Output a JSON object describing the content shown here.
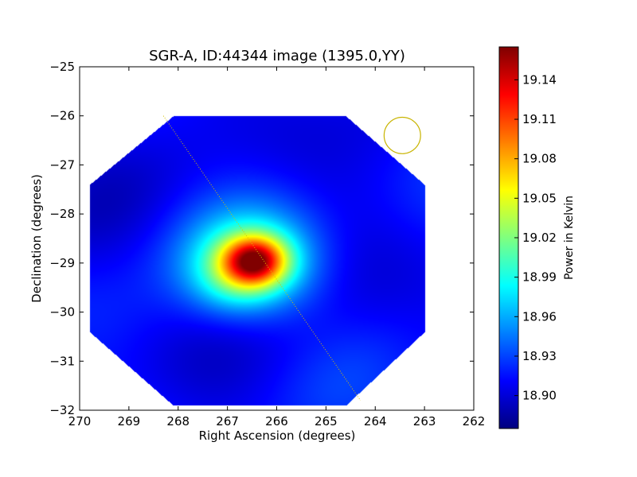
{
  "chart_data": {
    "type": "heatmap",
    "title": "SGR-A, ID:44344 image (1395.0,YY)",
    "xlabel": "Right Ascension (degrees)",
    "ylabel": "Declination (degrees)",
    "xlim": [
      270,
      262
    ],
    "ylim": [
      -32,
      -25
    ],
    "xticks": [
      270,
      269,
      268,
      267,
      266,
      265,
      264,
      263,
      262
    ],
    "yticks": [
      -25,
      -26,
      -27,
      -28,
      -29,
      -30,
      -31,
      -32
    ],
    "x_tick_labels": [
      "270",
      "269",
      "268",
      "267",
      "266",
      "265",
      "264",
      "263",
      "262"
    ],
    "y_tick_labels": [
      "−25",
      "−26",
      "−27",
      "−28",
      "−29",
      "−30",
      "−31",
      "−32"
    ],
    "grid": false,
    "colormap": "jet",
    "colorbar": {
      "label": "Power in Kelvin",
      "min": 18.875,
      "max": 19.165,
      "ticks": [
        18.9,
        18.93,
        18.96,
        18.99,
        19.02,
        19.05,
        19.08,
        19.11,
        19.14
      ],
      "tick_labels": [
        "18.90",
        "18.93",
        "18.96",
        "18.99",
        "19.02",
        "19.05",
        "19.08",
        "19.11",
        "19.14"
      ]
    },
    "image_footprint_octagon": [
      [
        268.1,
        -26.0
      ],
      [
        264.6,
        -26.0
      ],
      [
        263.0,
        -27.4
      ],
      [
        263.0,
        -30.4
      ],
      [
        264.6,
        -31.9
      ],
      [
        268.1,
        -31.9
      ],
      [
        269.8,
        -30.4
      ],
      [
        269.8,
        -27.4
      ]
    ],
    "background_level": 18.91,
    "peak": {
      "ra": 266.45,
      "dec": -28.95,
      "value": 19.16
    },
    "emission_components": [
      {
        "ra": 266.45,
        "dec": -28.95,
        "sigma_ra": 0.45,
        "sigma_dec": 0.35,
        "amplitude": 0.16
      },
      {
        "ra": 266.5,
        "dec": -29.0,
        "sigma_ra": 0.95,
        "sigma_dec": 0.75,
        "amplitude": 0.09
      },
      {
        "ra": 266.9,
        "dec": -29.3,
        "sigma_ra": 0.55,
        "sigma_dec": 0.45,
        "amplitude": 0.03
      }
    ],
    "overlays": [
      {
        "type": "dotted-line",
        "color": "#d4c000",
        "from": [
          268.3,
          -26.0
        ],
        "to": [
          264.3,
          -31.8
        ]
      },
      {
        "type": "beam-circle",
        "color": "#c8b400",
        "center": [
          263.45,
          -26.4
        ],
        "radius_deg": 0.37
      }
    ]
  }
}
